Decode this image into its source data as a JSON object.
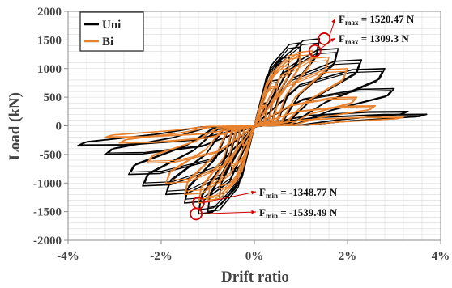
{
  "chart_data": {
    "type": "line",
    "xlabel": "Drift ratio",
    "ylabel": "Load (kN)",
    "xlim": [
      -4,
      4
    ],
    "ylim": [
      -2000,
      2000
    ],
    "x_ticks": [
      -4,
      -2,
      0,
      2,
      4
    ],
    "x_tick_labels": [
      "-4%",
      "-2%",
      "0%",
      "2%",
      "4%"
    ],
    "y_ticks": [
      -2000,
      -1500,
      -1000,
      -500,
      0,
      500,
      1000,
      1500,
      2000
    ],
    "y_tick_labels": [
      "-2000",
      "-1500",
      "-1000",
      "-500",
      "0",
      "500",
      "1000",
      "1500",
      "2000"
    ],
    "grid": true,
    "legend_position": "top-left",
    "series": [
      {
        "name": "Uni",
        "color": "#000000",
        "cycle_peaks": [
          {
            "pos": [
              0.25,
              400
            ],
            "neg": [
              -0.25,
              -400
            ]
          },
          {
            "pos": [
              0.5,
              800
            ],
            "neg": [
              -0.5,
              -800
            ]
          },
          {
            "pos": [
              0.75,
              1200
            ],
            "neg": [
              -0.75,
              -1250
            ]
          },
          {
            "pos": [
              1.0,
              1450
            ],
            "neg": [
              -1.0,
              -1500
            ]
          },
          {
            "pos": [
              1.4,
              1520.47
            ],
            "neg": [
              -1.2,
              -1539.49
            ]
          },
          {
            "pos": [
              1.8,
              1350
            ],
            "neg": [
              -1.5,
              -1350
            ]
          },
          {
            "pos": [
              2.3,
              1150
            ],
            "neg": [
              -1.9,
              -1200
            ]
          },
          {
            "pos": [
              2.8,
              1000
            ],
            "neg": [
              -2.4,
              -1050
            ]
          },
          {
            "pos": [
              3.0,
              650
            ],
            "neg": [
              -2.7,
              -850
            ]
          },
          {
            "pos": [
              3.3,
              250
            ],
            "neg": [
              -3.2,
              -500
            ]
          },
          {
            "pos": [
              3.7,
              200
            ],
            "neg": [
              -3.8,
              -350
            ]
          }
        ]
      },
      {
        "name": "Bi",
        "color": "#e8822e",
        "cycle_peaks": [
          {
            "pos": [
              0.25,
              350
            ],
            "neg": [
              -0.25,
              -350
            ]
          },
          {
            "pos": [
              0.5,
              700
            ],
            "neg": [
              -0.5,
              -700
            ]
          },
          {
            "pos": [
              0.75,
              1050
            ],
            "neg": [
              -0.75,
              -1100
            ]
          },
          {
            "pos": [
              1.0,
              1250
            ],
            "neg": [
              -1.0,
              -1300
            ]
          },
          {
            "pos": [
              1.25,
              1309.3
            ],
            "neg": [
              -1.2,
              -1348.77
            ]
          },
          {
            "pos": [
              1.6,
              1200
            ],
            "neg": [
              -1.5,
              -1200
            ]
          },
          {
            "pos": [
              2.0,
              1000
            ],
            "neg": [
              -1.9,
              -1000
            ]
          },
          {
            "pos": [
              2.2,
              500
            ],
            "neg": [
              -2.3,
              -650
            ]
          },
          {
            "pos": [
              2.6,
              350
            ],
            "neg": [
              -2.9,
              -300
            ]
          },
          {
            "pos": [
              3.2,
              150
            ],
            "neg": [
              -3.2,
              -200
            ]
          }
        ]
      }
    ],
    "annotations": [
      {
        "label": "F",
        "sub": "max",
        "text": " = 1520.47 N",
        "x": 1.5,
        "y": 1520.47,
        "color": "#d00000"
      },
      {
        "label": "F",
        "sub": "max",
        "text": " = 1309.3 N",
        "x": 1.3,
        "y": 1309.3,
        "color": "#d00000"
      },
      {
        "label": "F",
        "sub": "min",
        "text": " = -1348.77 N",
        "x": -1.2,
        "y": -1348.77,
        "color": "#d00000"
      },
      {
        "label": "F",
        "sub": "min",
        "text": " = -1539.49 N",
        "x": -1.25,
        "y": -1539.49,
        "color": "#d00000"
      }
    ]
  }
}
